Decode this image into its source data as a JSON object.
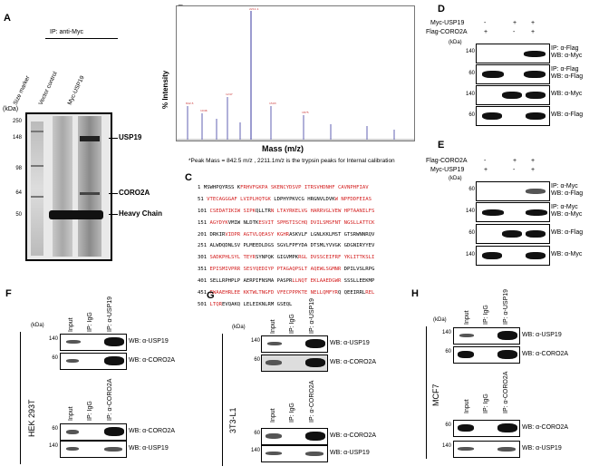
{
  "panels": {
    "a": "A",
    "b": "B",
    "c": "C",
    "d": "D",
    "e": "E",
    "f": "F",
    "g": "G",
    "h": "H"
  },
  "panel_a": {
    "ip_label": "IP: anti-Myc",
    "lane_labels": [
      "Size marker",
      "Vector control",
      "Myc-USP19"
    ],
    "kda": "(kDa)",
    "markers": [
      "250",
      "148",
      "98",
      "64",
      "50"
    ],
    "arrows": [
      "USP19",
      "CORO2A",
      "Heavy Chain"
    ]
  },
  "panel_b": {
    "ylabel": "% Intensity",
    "xlabel": "Mass (m/z)",
    "note": "*Peak Mass = 842.5 m/z , 2211.1m/z is the trypsin peaks for Internal calibration"
  },
  "panel_c": {
    "lines": [
      {
        "num": "1",
        "black": "MSWHPQYRSS K",
        "red": "FRHVFGKPA SKENCYDSVP ITRSVHDNHF CAVNPHFIAV"
      },
      {
        "num": "51",
        "red": "VTECAGGGAF LVIPLHQTGK",
        "black": " LDPHYPKVCG HRGNVLDVK",
        "red2": "W NPFDDFEIAS"
      },
      {
        "num": "101",
        "red": "CSEDATIKIW SIPK",
        "black": "QLLTR",
        "red2": "N LTAYRKELVG HARRVGLVEW HPTAANILFS"
      },
      {
        "num": "151",
        "red": "AGYDYK",
        "black": "VMIW NLDTK",
        "red2": "ESVIT SPMSTISCHQ DVILSMSFNT NGSLLATTCK"
      },
      {
        "num": "201",
        "black": "DRKIR",
        "red": "VIDPR AGTVLQEASY KGHR",
        "black2": "ASKVLF LGNLKKLMST GTSRWNNRQV"
      },
      {
        "num": "251",
        "black": "ALWDQDNLSV PLMEEDLDGS SGVLFPFYDA DTSMLYVVGK GDGNIRYYEV",
        "red": ""
      },
      {
        "num": "301",
        "red": "SADKPHLSYL TEYR",
        "black": "SYNPQK GIGVMPK",
        "red2": "RGL DVSSCEIFRF YKLITTKSLI"
      },
      {
        "num": "351",
        "red": "EPISMIVPRR SESYQEDIYP PTAGAQPSLT AQEWLSGMNR",
        "black": " DPILVSLRPG"
      },
      {
        "num": "401",
        "black": "SELLRPHPLP AERPIFNSMA PASPR",
        "red": "LLNQT EKLAAEDGWR",
        "black2": " SSSLLEEKMP"
      },
      {
        "num": "451",
        "red": "RWAAEHRLEE KKTWLTNGFD VFECPPPKTE NELLQMFYR",
        "black": "Q QEEIRRL",
        "red2": "REL"
      },
      {
        "num": "501",
        "red": "LTQR",
        "black": "EVQAKQ LELEIKNLRM GSEQL"
      }
    ]
  },
  "panel_d": {
    "row_labels": [
      "Myc-USP19",
      "Flag-CORO2A"
    ],
    "signs": [
      [
        "-",
        "+",
        "+"
      ],
      [
        "+",
        "-",
        "+"
      ]
    ],
    "kda": "(kDa)",
    "blots": [
      {
        "mw": "140",
        "label": "IP: α-Flag\nWB: α-Myc"
      },
      {
        "mw": "60",
        "label": "IP: α-Flag\nWB: α-Flag"
      },
      {
        "mw": "140",
        "label": "WB: α-Myc"
      },
      {
        "mw": "60",
        "label": "WB: α-Flag"
      }
    ]
  },
  "panel_e": {
    "row_labels": [
      "Flag-CORO2A",
      "Myc-USP19"
    ],
    "signs": [
      [
        "-",
        "+",
        "+"
      ],
      [
        "+",
        "-",
        "+"
      ]
    ],
    "kda": "(kDa)",
    "blots": [
      {
        "mw": "60",
        "label": "IP: α-Myc\nWB: α-Flag"
      },
      {
        "mw": "140",
        "label": "IP: α-Myc\nWB: α-Myc"
      },
      {
        "mw": "60",
        "label": "WB: α-Flag"
      },
      {
        "mw": "140",
        "label": "WB: α-Myc"
      }
    ]
  },
  "panel_f": {
    "cell_line": "HEK 293T",
    "kda": "(kDa)",
    "lanes_top": [
      "Input",
      "IP: IgG",
      "IP: α-USP19"
    ],
    "lanes_bottom": [
      "Input",
      "IP: IgG",
      "IP: α-CORO2A"
    ],
    "blots_top": [
      {
        "mw": "140",
        "label": "WB: α-USP19"
      },
      {
        "mw": "60",
        "label": "WB: α-CORO2A"
      }
    ],
    "blots_bottom": [
      {
        "mw": "60",
        "label": "WB: α-CORO2A"
      },
      {
        "mw": "140",
        "label": "WB: α-USP19"
      }
    ]
  },
  "panel_g": {
    "cell_line": "3T3-L1",
    "kda": "(kDa)",
    "lanes_top": [
      "Input",
      "IP: IgG",
      "IP: α-USP19"
    ],
    "lanes_bottom": [
      "Input",
      "IP: IgG",
      "IP: α-CORO2A"
    ],
    "blots_top": [
      {
        "mw": "140",
        "label": "WB: α-USP19"
      },
      {
        "mw": "60",
        "label": "WB: α-CORO2A"
      }
    ],
    "blots_bottom": [
      {
        "mw": "60",
        "label": "WB: α-CORO2A"
      },
      {
        "mw": "140",
        "label": "WB: α-USP19"
      }
    ]
  },
  "panel_h": {
    "cell_line": "MCF7",
    "kda": "(kDa)",
    "lanes_top": [
      "Input",
      "IP: IgG",
      "IP: α-USP19"
    ],
    "lanes_bottom": [
      "Input",
      "IP: IgG",
      "IP: α-CORO2A"
    ],
    "blots_top": [
      {
        "mw": "140",
        "label": "WB: α-USP19"
      },
      {
        "mw": "60",
        "label": "WB: α-CORO2A"
      }
    ],
    "blots_bottom": [
      {
        "mw": "60",
        "label": "WB: α-CORO2A"
      },
      {
        "mw": "140",
        "label": "WB: α-USP19"
      }
    ]
  }
}
